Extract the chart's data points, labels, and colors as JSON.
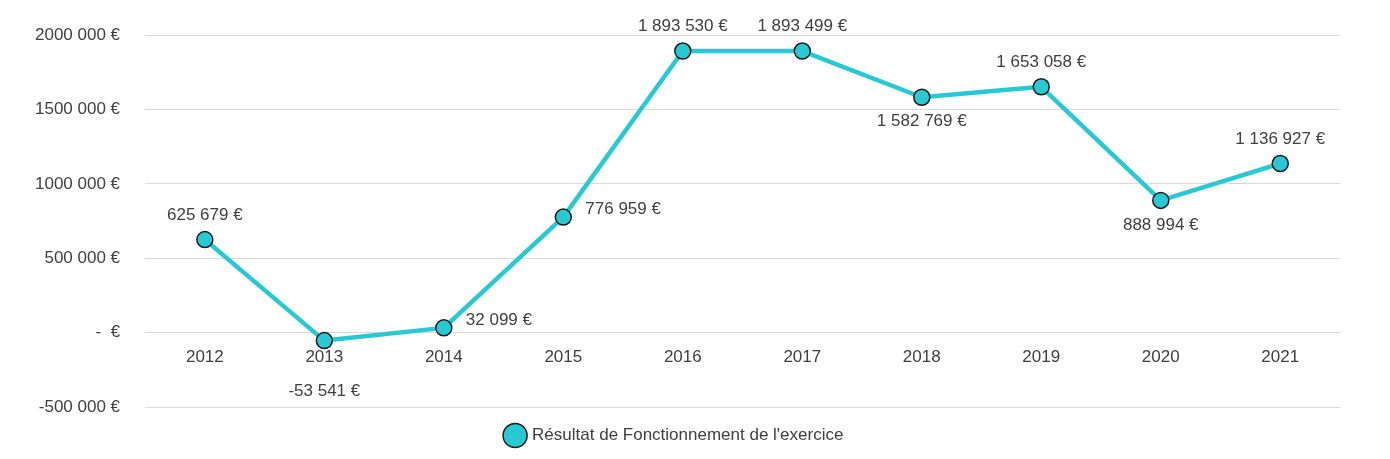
{
  "chart_data": {
    "type": "line",
    "categories": [
      "2012",
      "2013",
      "2014",
      "2015",
      "2016",
      "2017",
      "2018",
      "2019",
      "2020",
      "2021"
    ],
    "series": [
      {
        "name": "Résultat de Fonctionnement de l'exercice",
        "color": "#29c9d4",
        "values": [
          625679,
          -53541,
          32099,
          776959,
          1893530,
          1893499,
          1582769,
          1653058,
          888994,
          1136927
        ],
        "value_labels": [
          "625 679 €",
          "-53 541 €",
          "32 099 €",
          "776 959 €",
          "1 893 530 €",
          "1 893 499 €",
          "1 582 769 €",
          "1 653 058 €",
          "888 994 €",
          "1 136 927 €"
        ]
      }
    ],
    "ylim": [
      -500000,
      2000000
    ],
    "yticks": [
      {
        "value": -500000,
        "label": "-500 000 €"
      },
      {
        "value": 0,
        "label": "-  €"
      },
      {
        "value": 500000,
        "label": "500 000 €"
      },
      {
        "value": 1000000,
        "label": "1000 000 €"
      },
      {
        "value": 1500000,
        "label": "1500 000 €"
      },
      {
        "value": 2000000,
        "label": "2000 000 €"
      }
    ],
    "grid": "y",
    "legend": "bottom",
    "marker": "circle",
    "line_style": "solid"
  }
}
